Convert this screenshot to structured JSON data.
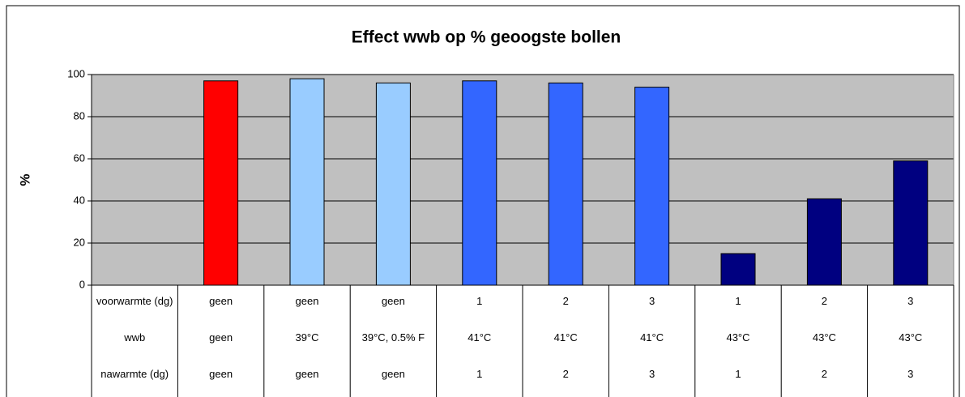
{
  "chart_data": {
    "type": "bar",
    "title": "Effect wwb op % geoogste bollen",
    "y_label": "%",
    "categories": [
      [
        "voorwarmte (dg)",
        "wwb",
        "nawarmte (dg)"
      ],
      [
        "geen",
        "geen",
        "geen"
      ],
      [
        "geen",
        "39°C",
        "geen"
      ],
      [
        "geen",
        "39°C, 0.5% F",
        "geen"
      ],
      [
        "1",
        "41°C",
        "1"
      ],
      [
        "2",
        "41°C",
        "2"
      ],
      [
        "3",
        "41°C",
        "3"
      ],
      [
        "1",
        "43°C",
        "1"
      ],
      [
        "2",
        "43°C",
        "2"
      ],
      [
        "3",
        "43°C",
        "3"
      ]
    ],
    "values": [
      null,
      97,
      98,
      96,
      97,
      96,
      94,
      15,
      41,
      59
    ],
    "colors": [
      null,
      "#ff0000",
      "#99ccff",
      "#99ccff",
      "#3366ff",
      "#3366ff",
      "#3366ff",
      "#000080",
      "#000080",
      "#000080"
    ],
    "ylim": [
      0,
      100
    ],
    "yticks": [
      0,
      20,
      40,
      60,
      80,
      100
    ],
    "grid": true,
    "plot_background": "#c0c0c0"
  }
}
